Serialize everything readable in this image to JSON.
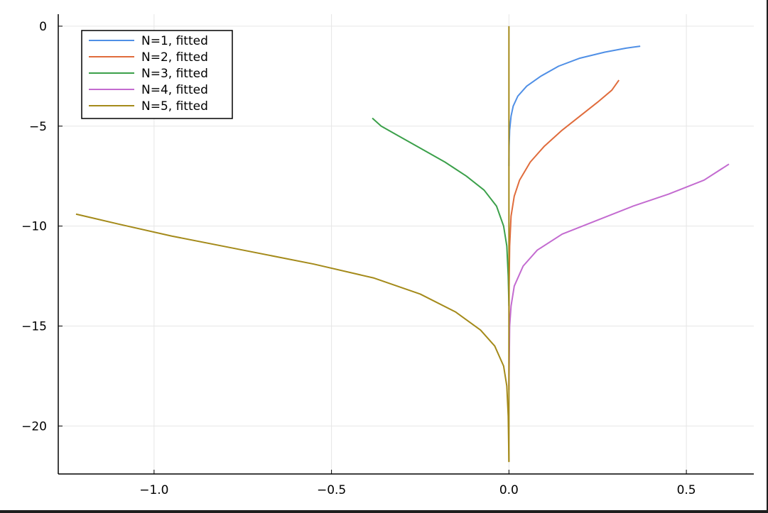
{
  "chart_data": {
    "type": "line",
    "title": "",
    "xlabel": "",
    "ylabel": "",
    "xlim": [
      -1.27,
      0.69
    ],
    "ylim": [
      -22.4,
      0.6
    ],
    "xticks": [
      -1.0,
      -0.5,
      0.0,
      0.5
    ],
    "xtick_labels": [
      "−1.0",
      "−0.5",
      "0.0",
      "0.5"
    ],
    "yticks": [
      0,
      -5,
      -10,
      -15,
      -20
    ],
    "ytick_labels": [
      "0",
      "−5",
      "−10",
      "−15",
      "−20"
    ],
    "grid": true,
    "legend_position": "top-left",
    "series": [
      {
        "name": "N=1, fitted",
        "color": "#4f8fe6",
        "points": [
          [
            0.0,
            -7.0
          ],
          [
            0.0005,
            -6.0
          ],
          [
            0.002,
            -5.2
          ],
          [
            0.006,
            -4.5
          ],
          [
            0.012,
            -4.0
          ],
          [
            0.025,
            -3.5
          ],
          [
            0.05,
            -3.0
          ],
          [
            0.09,
            -2.5
          ],
          [
            0.14,
            -2.0
          ],
          [
            0.2,
            -1.6
          ],
          [
            0.27,
            -1.3
          ],
          [
            0.33,
            -1.1
          ],
          [
            0.37,
            -1.0
          ]
        ]
      },
      {
        "name": "N=2, fitted",
        "color": "#e06c3c",
        "points": [
          [
            0.0,
            -18.2
          ],
          [
            0.0005,
            -13.0
          ],
          [
            0.002,
            -11.0
          ],
          [
            0.006,
            -9.5
          ],
          [
            0.015,
            -8.5
          ],
          [
            0.03,
            -7.7
          ],
          [
            0.06,
            -6.8
          ],
          [
            0.1,
            -6.0
          ],
          [
            0.15,
            -5.2
          ],
          [
            0.2,
            -4.5
          ],
          [
            0.25,
            -3.8
          ],
          [
            0.29,
            -3.2
          ],
          [
            0.31,
            -2.7
          ]
        ]
      },
      {
        "name": "N=3, fitted",
        "color": "#3ba04a",
        "points": [
          [
            0.0,
            -14.0
          ],
          [
            -0.002,
            -12.5
          ],
          [
            -0.006,
            -11.0
          ],
          [
            -0.015,
            -10.0
          ],
          [
            -0.035,
            -9.0
          ],
          [
            -0.07,
            -8.2
          ],
          [
            -0.12,
            -7.5
          ],
          [
            -0.18,
            -6.8
          ],
          [
            -0.25,
            -6.1
          ],
          [
            -0.31,
            -5.5
          ],
          [
            -0.36,
            -5.0
          ],
          [
            -0.385,
            -4.6
          ]
        ]
      },
      {
        "name": "N=4, fitted",
        "color": "#c36bd0",
        "points": [
          [
            0.0,
            -18.0
          ],
          [
            0.002,
            -15.0
          ],
          [
            0.006,
            -14.0
          ],
          [
            0.015,
            -13.0
          ],
          [
            0.04,
            -12.0
          ],
          [
            0.08,
            -11.2
          ],
          [
            0.15,
            -10.4
          ],
          [
            0.25,
            -9.7
          ],
          [
            0.35,
            -9.0
          ],
          [
            0.45,
            -8.4
          ],
          [
            0.55,
            -7.7
          ],
          [
            0.62,
            -6.9
          ]
        ]
      },
      {
        "name": "N=5, fitted",
        "color": "#a48a1a",
        "points": [
          [
            0.0,
            -21.8
          ],
          [
            -0.002,
            -19.5
          ],
          [
            -0.006,
            -18.0
          ],
          [
            -0.015,
            -17.0
          ],
          [
            -0.04,
            -16.0
          ],
          [
            -0.08,
            -15.2
          ],
          [
            -0.15,
            -14.3
          ],
          [
            -0.25,
            -13.4
          ],
          [
            -0.38,
            -12.6
          ],
          [
            -0.55,
            -11.9
          ],
          [
            -0.75,
            -11.2
          ],
          [
            -0.95,
            -10.5
          ],
          [
            -1.1,
            -9.9
          ],
          [
            -1.22,
            -9.4
          ]
        ]
      },
      {
        "name": "",
        "color": "#a48a1a",
        "points": [
          [
            0.0,
            -21.8
          ],
          [
            0.0,
            0.0
          ]
        ]
      }
    ]
  }
}
